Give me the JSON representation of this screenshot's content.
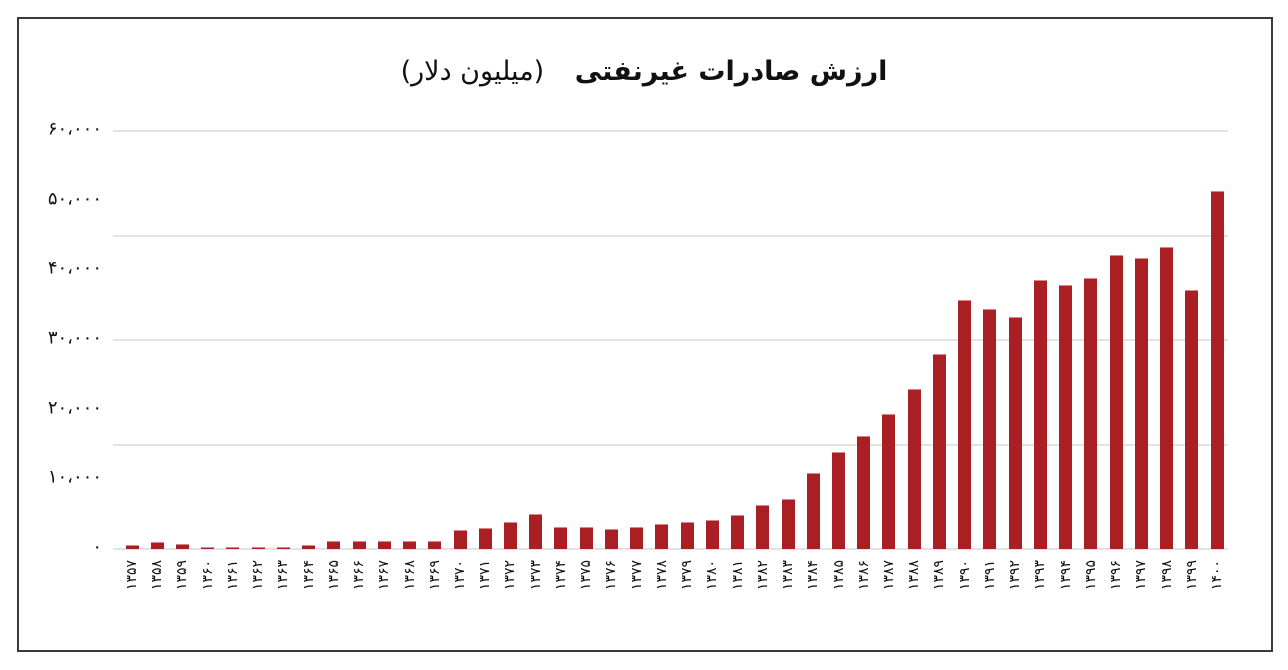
{
  "title": {
    "main": "ارزش صادرات غیرنفتی",
    "unit": "(میلیون دلار)"
  },
  "colors": {
    "bar": "#a91f24",
    "gridline": "#e3e3e3",
    "frame": "#3a3a3a"
  },
  "y_axis": {
    "ticks": [
      {
        "value": 0,
        "label": "۰"
      },
      {
        "value": 10000,
        "label": "۱۰،۰۰۰"
      },
      {
        "value": 20000,
        "label": "۲۰،۰۰۰"
      },
      {
        "value": 30000,
        "label": "۳۰،۰۰۰"
      },
      {
        "value": 40000,
        "label": "۴۰،۰۰۰"
      },
      {
        "value": 50000,
        "label": "۵۰،۰۰۰"
      },
      {
        "value": 60000,
        "label": "۶۰،۰۰۰"
      }
    ],
    "gridlines": [
      0,
      15000,
      30000,
      45000,
      60000
    ]
  },
  "chart_data": {
    "type": "bar",
    "title": "ارزش صادرات غیرنفتی (میلیون دلار)",
    "xlabel": "",
    "ylabel": "",
    "ylim": [
      0,
      60000
    ],
    "grid": true,
    "legend": null,
    "categories": [
      "۱۳۵۷",
      "۱۳۵۸",
      "۱۳۵۹",
      "۱۳۶۰",
      "۱۳۶۱",
      "۱۳۶۲",
      "۱۳۶۳",
      "۱۳۶۴",
      "۱۳۶۵",
      "۱۳۶۶",
      "۱۳۶۷",
      "۱۳۶۸",
      "۱۳۶۹",
      "۱۳۷۰",
      "۱۳۷۱",
      "۱۳۷۲",
      "۱۳۷۳",
      "۱۳۷۴",
      "۱۳۷۵",
      "۱۳۷۶",
      "۱۳۷۷",
      "۱۳۷۸",
      "۱۳۷۹",
      "۱۳۸۰",
      "۱۳۸۱",
      "۱۳۸۲",
      "۱۳۸۳",
      "۱۳۸۴",
      "۱۳۸۵",
      "۱۳۸۶",
      "۱۳۸۷",
      "۱۳۸۸",
      "۱۳۸۹",
      "۱۳۹۰",
      "۱۳۹۱",
      "۱۳۹۲",
      "۱۳۹۳",
      "۱۳۹۴",
      "۱۳۹۵",
      "۱۳۹۶",
      "۱۳۹۷",
      "۱۳۹۸",
      "۱۳۹۹",
      "۱۴۰۰"
    ],
    "years": [
      1357,
      1358,
      1359,
      1360,
      1361,
      1362,
      1363,
      1364,
      1365,
      1366,
      1367,
      1368,
      1369,
      1370,
      1371,
      1372,
      1373,
      1374,
      1375,
      1376,
      1377,
      1378,
      1379,
      1380,
      1381,
      1382,
      1383,
      1384,
      1385,
      1386,
      1387,
      1388,
      1389,
      1390,
      1391,
      1392,
      1393,
      1394,
      1395,
      1396,
      1397,
      1398,
      1399,
      1400
    ],
    "values": [
      600,
      950,
      700,
      350,
      350,
      350,
      300,
      600,
      1150,
      1150,
      1150,
      1150,
      1150,
      2750,
      3000,
      3900,
      5000,
      3200,
      3200,
      2900,
      3200,
      3550,
      3900,
      4200,
      4850,
      6350,
      7150,
      10900,
      13950,
      16200,
      19400,
      23000,
      28000,
      35800,
      34400,
      33300,
      38650,
      37850,
      38850,
      42200,
      41700,
      43400,
      37150,
      51400
    ]
  }
}
